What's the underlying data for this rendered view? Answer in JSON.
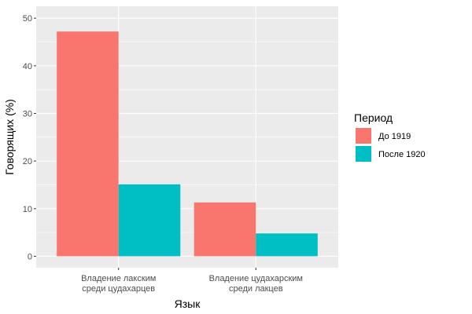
{
  "chart_data": {
    "type": "bar",
    "categories": [
      "Владение лакским\nсреди цудахарцев",
      "Владение цудахарским\nсреди лакцев"
    ],
    "series": [
      {
        "name": "До 1919",
        "values": [
          47.2,
          11.3
        ],
        "color": "#F8766D"
      },
      {
        "name": "После 1920",
        "values": [
          15.1,
          4.8
        ],
        "color": "#00BFC4"
      }
    ],
    "xlabel": "Язык",
    "ylabel": "Говорящих (%)",
    "ylim": [
      -2.4,
      52.5
    ],
    "yticks": [
      0,
      10,
      20,
      30,
      40,
      50
    ],
    "grid": true,
    "legend": {
      "title": "Период",
      "position": "right"
    },
    "panel_color": "#EBEBEB",
    "grid_color": "#FFFFFF"
  }
}
